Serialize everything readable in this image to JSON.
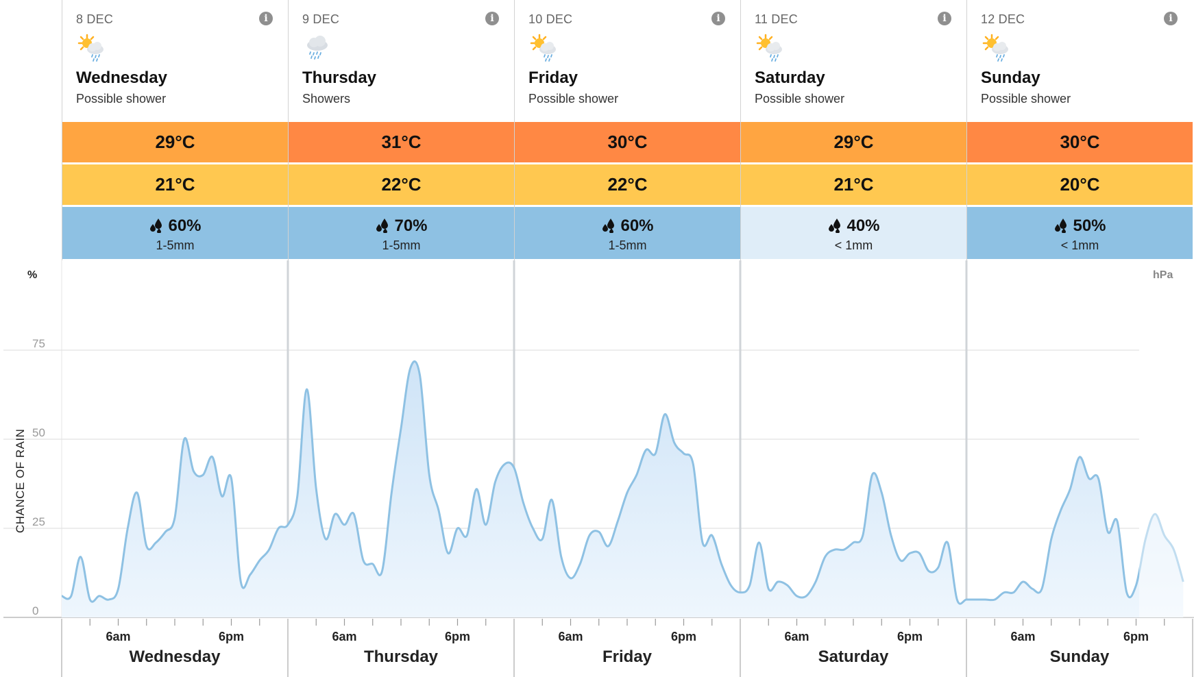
{
  "days": [
    {
      "date": "8 DEC",
      "icon": "sun-cloud-shower-icon",
      "name": "Wednesday",
      "summary": "Possible shower",
      "max": "29°C",
      "min": "21°C",
      "rain_chance": "60%",
      "rain_amount": "1-5mm",
      "max_color": "#ffa541",
      "rain_color": "#8ec1e3"
    },
    {
      "date": "9 DEC",
      "icon": "cloud-rain-icon",
      "name": "Thursday",
      "summary": "Showers",
      "max": "31°C",
      "min": "22°C",
      "rain_chance": "70%",
      "rain_amount": "1-5mm",
      "max_color": "#ff8844",
      "rain_color": "#8ec1e3"
    },
    {
      "date": "10 DEC",
      "icon": "sun-cloud-shower-icon",
      "name": "Friday",
      "summary": "Possible shower",
      "max": "30°C",
      "min": "22°C",
      "rain_chance": "60%",
      "rain_amount": "1-5mm",
      "max_color": "#ff8844",
      "rain_color": "#8ec1e3"
    },
    {
      "date": "11 DEC",
      "icon": "sun-cloud-shower-icon",
      "name": "Saturday",
      "summary": "Possible shower",
      "max": "29°C",
      "min": "21°C",
      "rain_chance": "40%",
      "rain_amount": "< 1mm",
      "max_color": "#ffa541",
      "rain_color": "#dfedf8"
    },
    {
      "date": "12 DEC",
      "icon": "sun-cloud-shower-icon",
      "name": "Sunday",
      "summary": "Possible shower",
      "max": "30°C",
      "min": "20°C",
      "rain_chance": "50%",
      "rain_amount": "< 1mm",
      "max_color": "#ff8844",
      "rain_color": "#8ec1e3"
    }
  ],
  "colors": {
    "min_temp": "#ffc850",
    "line": "#8ec1e3",
    "fill": "#dcedfa"
  },
  "chart_data": {
    "type": "area",
    "ylabel": "CHANCE OF RAIN",
    "y_unit_left": "%",
    "y_unit_right": "hPa",
    "yticks": [
      "0",
      "25",
      "50",
      "75"
    ],
    "ylim": [
      0,
      100
    ],
    "xtick_labels": [
      "6am",
      "6pm"
    ],
    "day_labels": [
      "Wednesday",
      "Thursday",
      "Friday",
      "Saturday",
      "Sunday"
    ],
    "x_unit": "hours since Wednesday 00:00",
    "series": [
      {
        "values": [
          [
            0,
            6
          ],
          [
            1,
            6
          ],
          [
            2,
            17
          ],
          [
            3,
            5
          ],
          [
            4,
            6
          ],
          [
            5,
            5
          ],
          [
            6,
            8
          ],
          [
            7,
            25
          ],
          [
            8,
            35
          ],
          [
            9,
            20
          ],
          [
            10,
            21
          ],
          [
            11,
            24
          ],
          [
            12,
            28
          ],
          [
            13,
            50
          ],
          [
            14,
            41
          ],
          [
            15,
            40
          ],
          [
            16,
            45
          ],
          [
            17,
            34
          ],
          [
            18,
            39
          ],
          [
            19,
            10
          ],
          [
            20,
            12
          ],
          [
            21,
            16
          ],
          [
            22,
            19
          ],
          [
            23,
            25
          ],
          [
            24,
            26
          ],
          [
            25,
            34
          ],
          [
            26,
            64
          ],
          [
            27,
            36
          ],
          [
            28,
            22
          ],
          [
            29,
            29
          ],
          [
            30,
            26
          ],
          [
            31,
            29
          ],
          [
            32,
            16
          ],
          [
            33,
            15
          ],
          [
            34,
            13
          ],
          [
            35,
            35
          ],
          [
            36,
            53
          ],
          [
            37,
            70
          ],
          [
            38,
            68
          ],
          [
            39,
            40
          ],
          [
            40,
            30
          ],
          [
            41,
            18
          ],
          [
            42,
            25
          ],
          [
            43,
            23
          ],
          [
            44,
            36
          ],
          [
            45,
            26
          ],
          [
            46,
            38
          ],
          [
            47,
            43
          ],
          [
            48,
            42
          ],
          [
            49,
            32
          ],
          [
            50,
            25
          ],
          [
            51,
            22
          ],
          [
            52,
            33
          ],
          [
            53,
            17
          ],
          [
            54,
            11
          ],
          [
            55,
            15
          ],
          [
            56,
            23
          ],
          [
            57,
            24
          ],
          [
            58,
            20
          ],
          [
            59,
            27
          ],
          [
            60,
            35
          ],
          [
            61,
            40
          ],
          [
            62,
            47
          ],
          [
            63,
            46
          ],
          [
            64,
            57
          ],
          [
            65,
            49
          ],
          [
            66,
            46
          ],
          [
            67,
            43
          ],
          [
            68,
            21
          ],
          [
            69,
            23
          ],
          [
            70,
            15
          ],
          [
            71,
            9
          ],
          [
            72,
            7
          ],
          [
            73,
            9
          ],
          [
            74,
            21
          ],
          [
            75,
            8
          ],
          [
            76,
            10
          ],
          [
            77,
            9
          ],
          [
            78,
            6
          ],
          [
            79,
            6
          ],
          [
            80,
            10
          ],
          [
            81,
            17
          ],
          [
            82,
            19
          ],
          [
            83,
            19
          ],
          [
            84,
            21
          ],
          [
            85,
            23
          ],
          [
            86,
            40
          ],
          [
            87,
            35
          ],
          [
            88,
            23
          ],
          [
            89,
            16
          ],
          [
            90,
            18
          ],
          [
            91,
            18
          ],
          [
            92,
            13
          ],
          [
            93,
            14
          ],
          [
            94,
            21
          ],
          [
            95,
            5
          ],
          [
            96,
            5
          ],
          [
            97,
            5
          ],
          [
            98,
            5
          ],
          [
            99,
            5
          ],
          [
            100,
            7
          ],
          [
            101,
            7
          ],
          [
            102,
            10
          ],
          [
            103,
            8
          ],
          [
            104,
            8
          ],
          [
            105,
            22
          ],
          [
            106,
            30
          ],
          [
            107,
            36
          ],
          [
            108,
            45
          ],
          [
            109,
            39
          ],
          [
            110,
            39
          ],
          [
            111,
            24
          ],
          [
            112,
            27
          ],
          [
            113,
            7
          ],
          [
            114,
            9
          ],
          [
            115,
            22
          ],
          [
            116,
            29
          ],
          [
            117,
            23
          ],
          [
            118,
            19
          ],
          [
            119,
            10
          ]
        ]
      }
    ]
  }
}
